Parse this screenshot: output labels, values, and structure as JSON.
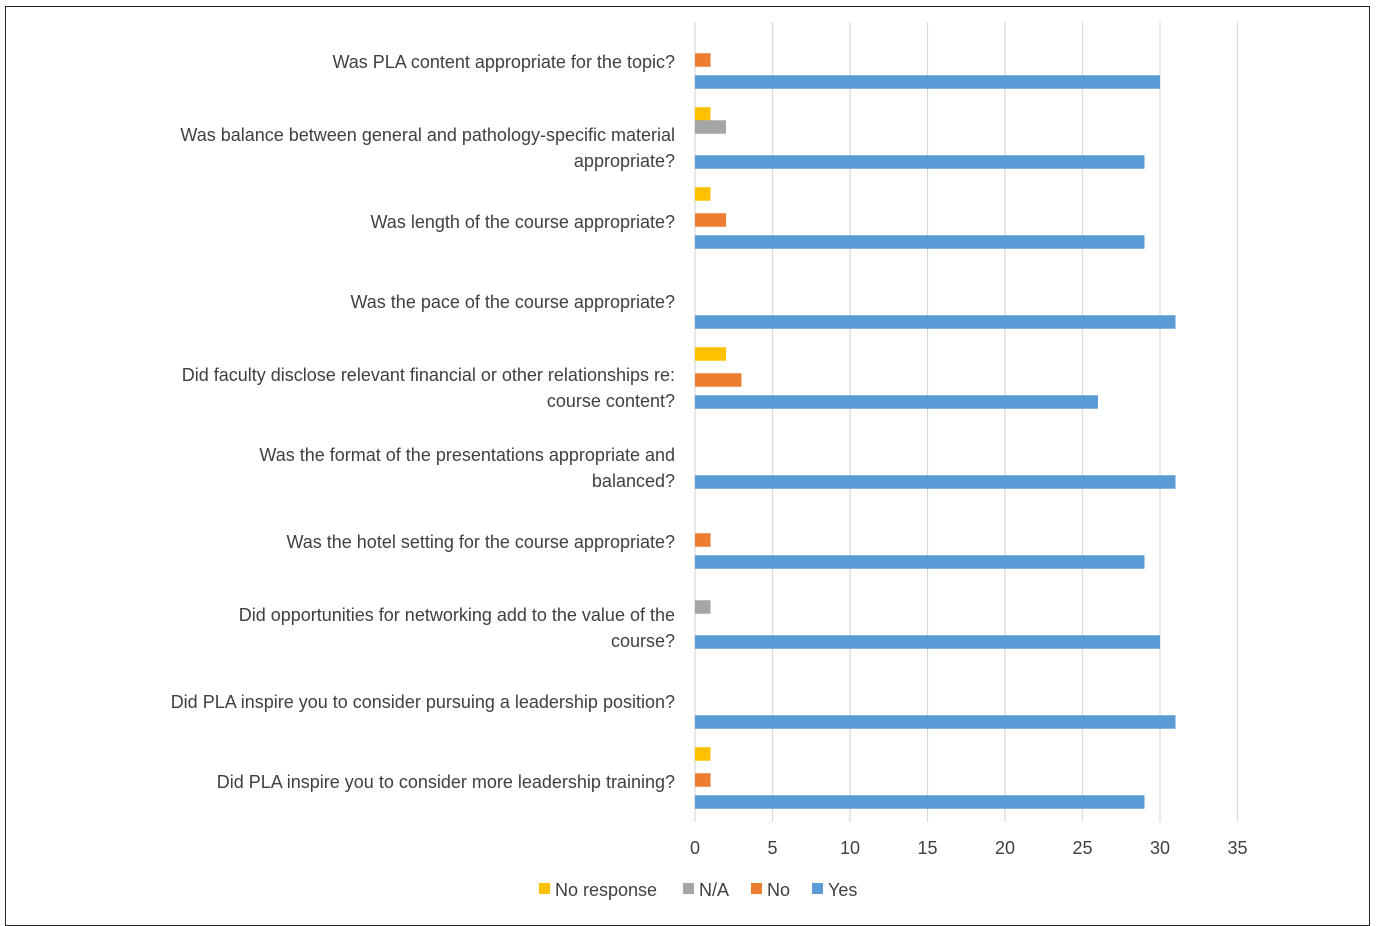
{
  "chart_data": {
    "type": "bar",
    "orientation": "horizontal",
    "title": "",
    "xlabel": "",
    "ylabel": "",
    "xlim": [
      0,
      35
    ],
    "x_ticks": [
      0,
      5,
      10,
      15,
      20,
      25,
      30,
      35
    ],
    "grid": "vertical",
    "legend_position": "bottom",
    "categories": [
      "Was PLA content appropriate for the topic?",
      "Was balance between general and pathology-specific material appropriate?",
      "Was length of the course appropriate?",
      "Was the pace of the course appropriate?",
      "Did faculty disclose relevant financial or other relationships re: course content?",
      "Was the format of the presentations appropriate and balanced?",
      "Was the hotel setting for the course appropriate?",
      "Did opportunities for networking add to the value of the course?",
      "Did PLA inspire you to consider pursuing a leadership position?",
      "Did PLA inspire you to consider more leadership training?"
    ],
    "category_lines": [
      [
        "Was PLA content appropriate for the topic?"
      ],
      [
        "Was balance between general and pathology-specific material",
        "appropriate?"
      ],
      [
        "Was length of the course appropriate?"
      ],
      [
        "Was the pace of the course appropriate?"
      ],
      [
        "Did faculty disclose relevant financial or other relationships re:",
        "course content?"
      ],
      [
        "Was the format of the presentations appropriate and",
        "balanced?"
      ],
      [
        "Was the hotel setting for the course appropriate?"
      ],
      [
        "Did opportunities for networking add to the value of the",
        "course?"
      ],
      [
        "Did PLA inspire you to consider pursuing a leadership position?"
      ],
      [
        "Did PLA inspire you to consider more leadership training?"
      ]
    ],
    "series": [
      {
        "name": "No response",
        "color": "#FFC000",
        "values": [
          0,
          1,
          1,
          0,
          2,
          0,
          0,
          0,
          0,
          1
        ]
      },
      {
        "name": "N/A",
        "color": "#A5A5A5",
        "values": [
          0,
          2,
          0,
          0,
          0,
          0,
          0,
          1,
          0,
          0
        ]
      },
      {
        "name": "No",
        "color": "#ED7D31",
        "values": [
          1,
          0,
          2,
          0,
          3,
          0,
          1,
          0,
          0,
          1
        ]
      },
      {
        "name": "Yes",
        "color": "#5B9BD5",
        "values": [
          30,
          29,
          29,
          31,
          26,
          31,
          29,
          30,
          31,
          29
        ]
      }
    ]
  }
}
